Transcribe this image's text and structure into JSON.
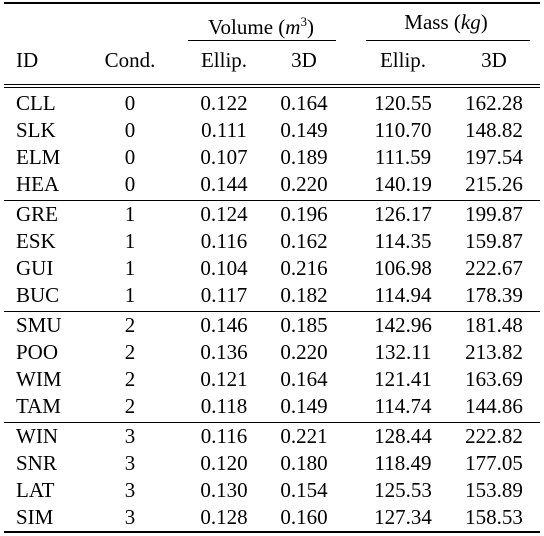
{
  "header": {
    "groups": {
      "volume": {
        "label": "Volume (",
        "unit": "m",
        "unit_sup": "3",
        "close": ")"
      },
      "mass": {
        "label": "Mass (",
        "unit": "kg",
        "close": ")"
      }
    },
    "columns": [
      "ID",
      "Cond.",
      "Ellip.",
      "3D",
      "Ellip.",
      "3D"
    ]
  },
  "groups": [
    {
      "rows": [
        {
          "id": "CLL",
          "cond": "0",
          "vol_ellip": "0.122",
          "vol_3d": "0.164",
          "mass_ellip": "120.55",
          "mass_3d": "162.28"
        },
        {
          "id": "SLK",
          "cond": "0",
          "vol_ellip": "0.111",
          "vol_3d": "0.149",
          "mass_ellip": "110.70",
          "mass_3d": "148.82"
        },
        {
          "id": "ELM",
          "cond": "0",
          "vol_ellip": "0.107",
          "vol_3d": "0.189",
          "mass_ellip": "111.59",
          "mass_3d": "197.54"
        },
        {
          "id": "HEA",
          "cond": "0",
          "vol_ellip": "0.144",
          "vol_3d": "0.220",
          "mass_ellip": "140.19",
          "mass_3d": "215.26"
        }
      ]
    },
    {
      "rows": [
        {
          "id": "GRE",
          "cond": "1",
          "vol_ellip": "0.124",
          "vol_3d": "0.196",
          "mass_ellip": "126.17",
          "mass_3d": "199.87"
        },
        {
          "id": "ESK",
          "cond": "1",
          "vol_ellip": "0.116",
          "vol_3d": "0.162",
          "mass_ellip": "114.35",
          "mass_3d": "159.87"
        },
        {
          "id": "GUI",
          "cond": "1",
          "vol_ellip": "0.104",
          "vol_3d": "0.216",
          "mass_ellip": "106.98",
          "mass_3d": "222.67"
        },
        {
          "id": "BUC",
          "cond": "1",
          "vol_ellip": "0.117",
          "vol_3d": "0.182",
          "mass_ellip": "114.94",
          "mass_3d": "178.39"
        }
      ]
    },
    {
      "rows": [
        {
          "id": "SMU",
          "cond": "2",
          "vol_ellip": "0.146",
          "vol_3d": "0.185",
          "mass_ellip": "142.96",
          "mass_3d": "181.48"
        },
        {
          "id": "POO",
          "cond": "2",
          "vol_ellip": "0.136",
          "vol_3d": "0.220",
          "mass_ellip": "132.11",
          "mass_3d": "213.82"
        },
        {
          "id": "WIM",
          "cond": "2",
          "vol_ellip": "0.121",
          "vol_3d": "0.164",
          "mass_ellip": "121.41",
          "mass_3d": "163.69"
        },
        {
          "id": "TAM",
          "cond": "2",
          "vol_ellip": "0.118",
          "vol_3d": "0.149",
          "mass_ellip": "114.74",
          "mass_3d": "144.86"
        }
      ]
    },
    {
      "rows": [
        {
          "id": "WIN",
          "cond": "3",
          "vol_ellip": "0.116",
          "vol_3d": "0.221",
          "mass_ellip": "128.44",
          "mass_3d": "222.82"
        },
        {
          "id": "SNR",
          "cond": "3",
          "vol_ellip": "0.120",
          "vol_3d": "0.180",
          "mass_ellip": "118.49",
          "mass_3d": "177.05"
        },
        {
          "id": "LAT",
          "cond": "3",
          "vol_ellip": "0.130",
          "vol_3d": "0.154",
          "mass_ellip": "125.53",
          "mass_3d": "153.89"
        },
        {
          "id": "SIM",
          "cond": "3",
          "vol_ellip": "0.128",
          "vol_3d": "0.160",
          "mass_ellip": "127.34",
          "mass_3d": "158.53"
        }
      ]
    }
  ]
}
